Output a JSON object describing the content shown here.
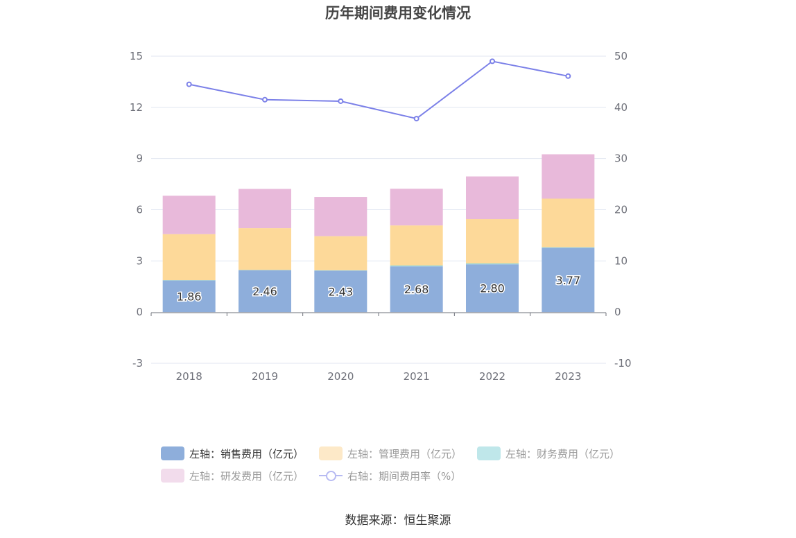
{
  "chart_data": {
    "type": "bar",
    "title": "历年期间费用变化情况",
    "categories": [
      "2018",
      "2019",
      "2020",
      "2021",
      "2022",
      "2023"
    ],
    "series": [
      {
        "name": "左轴：销售费用（亿元）",
        "axis": "left",
        "kind": "bar",
        "color": "#8eaedb",
        "values": [
          1.86,
          2.46,
          2.43,
          2.68,
          2.8,
          3.77
        ],
        "labels": [
          "1.86",
          "2.46",
          "2.43",
          "2.68",
          "2.80",
          "3.77"
        ]
      },
      {
        "name": "左轴：管理费用（亿元）",
        "axis": "left",
        "kind": "bar",
        "color": "#fdd999",
        "values": [
          2.7,
          2.45,
          2.0,
          2.35,
          2.6,
          2.85
        ]
      },
      {
        "name": "左轴：财务费用（亿元）",
        "axis": "left",
        "kind": "bar",
        "color": "#8fd7dc",
        "values": [
          0.01,
          0.01,
          0.02,
          0.05,
          0.05,
          0.03
        ]
      },
      {
        "name": "左轴：研发费用（亿元）",
        "axis": "left",
        "kind": "bar",
        "color": "#e8b9da",
        "values": [
          2.25,
          2.3,
          2.3,
          2.15,
          2.5,
          2.6
        ]
      },
      {
        "name": "右轴：期间费用率（%）",
        "axis": "right",
        "kind": "line",
        "color": "#7b80e8",
        "values": [
          44.5,
          41.5,
          41.2,
          37.8,
          49.0,
          46.1
        ]
      }
    ],
    "y_left": {
      "min": -3,
      "max": 15,
      "ticks": [
        "15",
        "12",
        "9",
        "6",
        "3",
        "0",
        "-3"
      ]
    },
    "y_right": {
      "min": -10,
      "max": 50,
      "ticks": [
        "50",
        "40",
        "30",
        "20",
        "10",
        "0",
        "-10"
      ]
    },
    "grid": true,
    "legend_position": "bottom"
  },
  "legend": {
    "items": [
      {
        "label": "左轴：销售费用（亿元）",
        "color": "#8eaedb",
        "text_color": "#333333",
        "type": "bar"
      },
      {
        "label": "左轴：管理费用（亿元）",
        "color": "#fde9c8",
        "text_color": "#999999",
        "type": "bar"
      },
      {
        "label": "左轴：财务费用（亿元）",
        "color": "#bfe7ea",
        "text_color": "#999999",
        "type": "bar"
      },
      {
        "label": "左轴：研发费用（亿元）",
        "color": "#f2dcec",
        "text_color": "#999999",
        "type": "bar"
      },
      {
        "label": "右轴：期间费用率（%）",
        "color": "#b7baf2",
        "text_color": "#999999",
        "type": "line"
      }
    ]
  },
  "source": "数据来源：恒生聚源"
}
